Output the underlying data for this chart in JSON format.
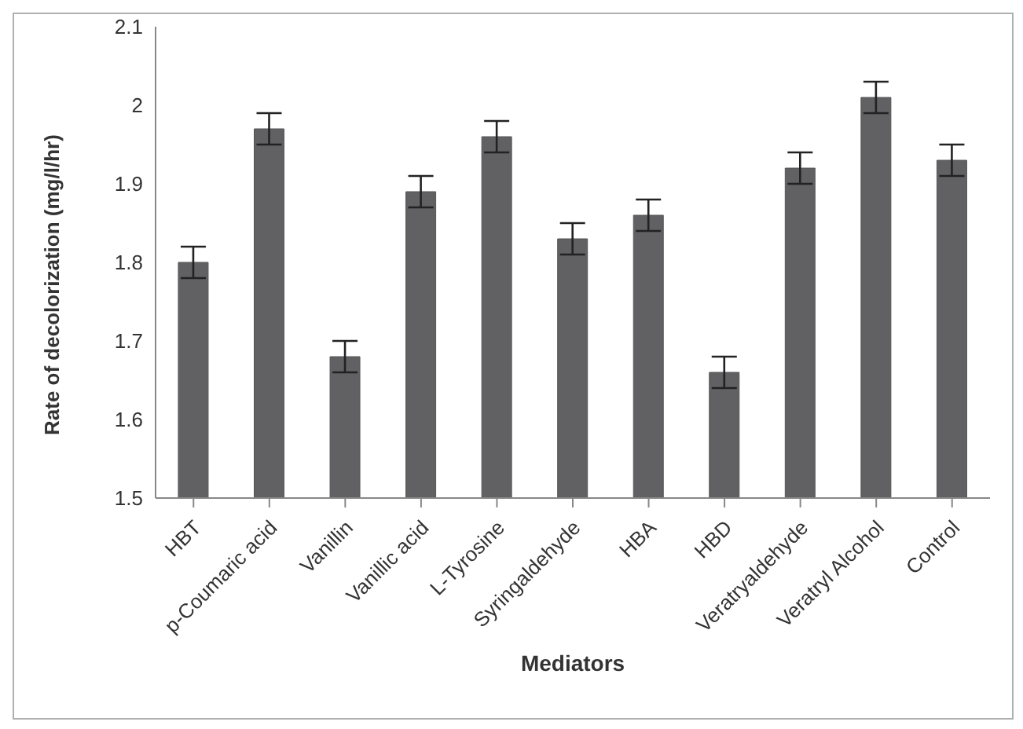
{
  "chart_data": {
    "type": "bar",
    "xlabel": "Mediators",
    "ylabel": "Rate of decolorization (mg/l/hr)",
    "categories": [
      "HBT",
      "p-Coumaric acid",
      "Vanillin",
      "Vanillic acid",
      "L-Tyrosine",
      "Syringaldehyde",
      "HBA",
      "HBD",
      "Veratryaldehyde",
      "Veratryl Alcohol",
      "Control"
    ],
    "values": [
      1.8,
      1.97,
      1.68,
      1.89,
      1.96,
      1.83,
      1.86,
      1.66,
      1.92,
      2.01,
      1.93
    ],
    "errors": [
      0.02,
      0.02,
      0.02,
      0.02,
      0.02,
      0.02,
      0.02,
      0.02,
      0.02,
      0.02,
      0.02
    ],
    "color": "#616163",
    "ylim": [
      1.5,
      2.1
    ],
    "yticks": [
      1.5,
      1.6,
      1.7,
      1.8,
      1.9,
      2,
      2.1
    ],
    "grid": false,
    "legend": false
  }
}
